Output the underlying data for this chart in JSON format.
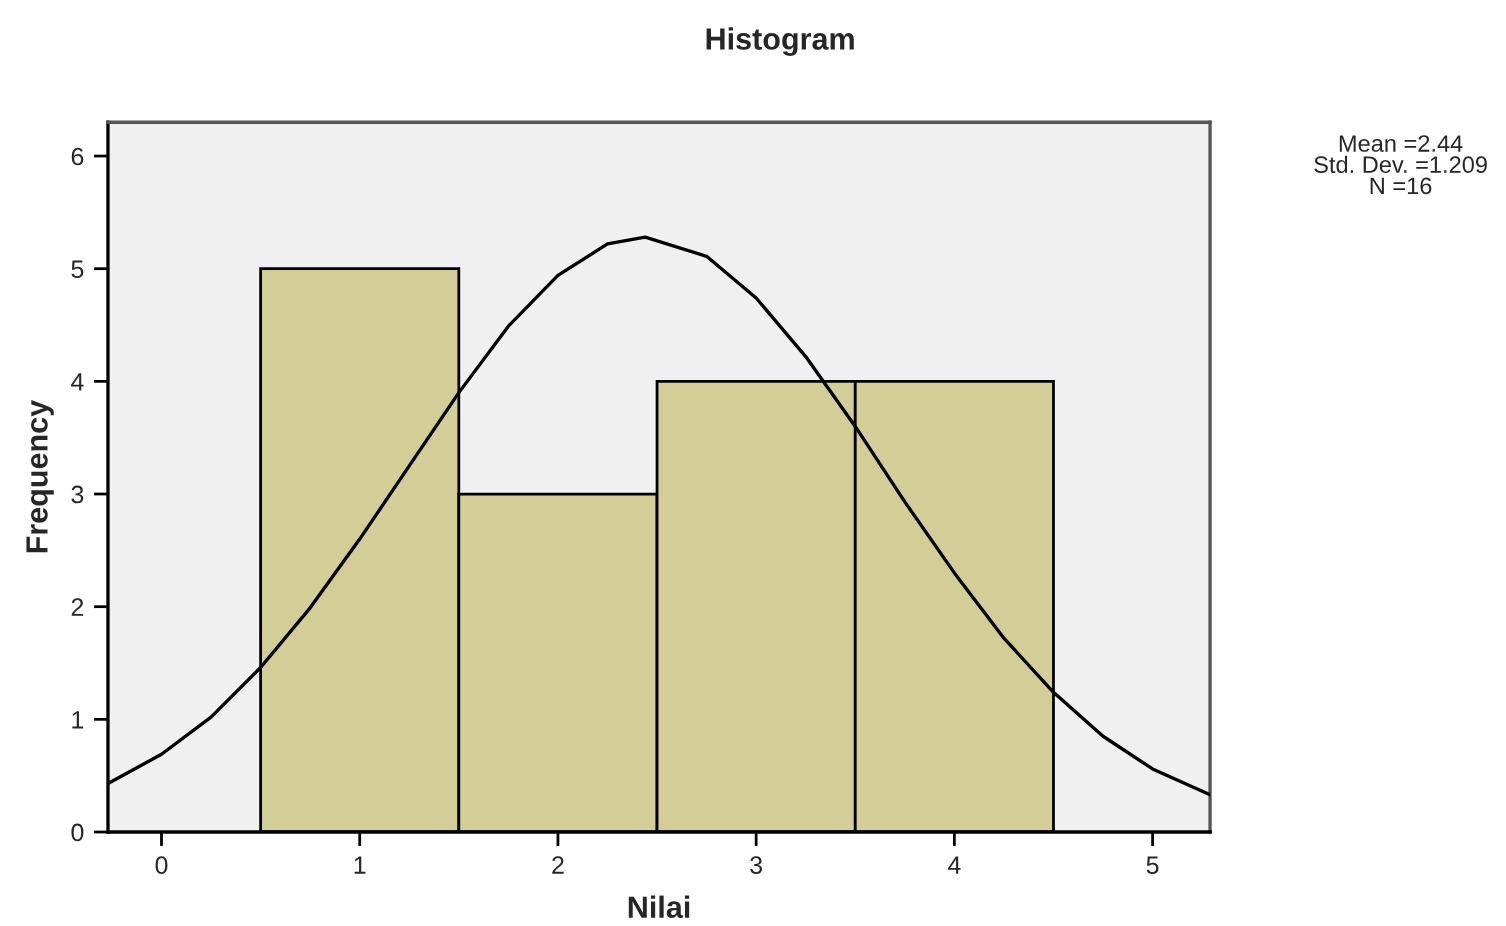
{
  "chart_data": {
    "type": "histogram",
    "title": "Histogram",
    "xlabel": "Nilai",
    "ylabel": "Frequency",
    "bins": [
      0.5,
      1.5,
      2.5,
      3.5,
      4.5
    ],
    "values": [
      5,
      3,
      4,
      4
    ],
    "color": "#d3ce97",
    "series": [
      {
        "type": "line",
        "color": "#000000",
        "x": [
          -0.27,
          0,
          0.25,
          0.5,
          0.75,
          1,
          1.25,
          1.5,
          1.75,
          2,
          2.25,
          2.44,
          2.75,
          3,
          3.25,
          3.5,
          3.75,
          4,
          4.25,
          4.5,
          4.75,
          5,
          5.29
        ],
        "values": [
          0.43,
          0.69,
          1.02,
          1.46,
          1.99,
          2.6,
          3.25,
          3.9,
          4.49,
          4.94,
          5.22,
          5.28,
          5.11,
          4.74,
          4.22,
          3.6,
          2.93,
          2.3,
          1.72,
          1.24,
          0.85,
          0.56,
          0.33
        ]
      }
    ],
    "annotations": [
      "Mean =2.44\nStd. Dev. =1.209\nN =16"
    ],
    "xlim": [
      -0.27,
      5.29
    ],
    "ylim": [
      0,
      6.3
    ],
    "xticks": [
      0,
      1,
      2,
      3,
      4,
      5
    ],
    "yticks": [
      0,
      1,
      2,
      3,
      4,
      5,
      6
    ],
    "grid": false
  }
}
